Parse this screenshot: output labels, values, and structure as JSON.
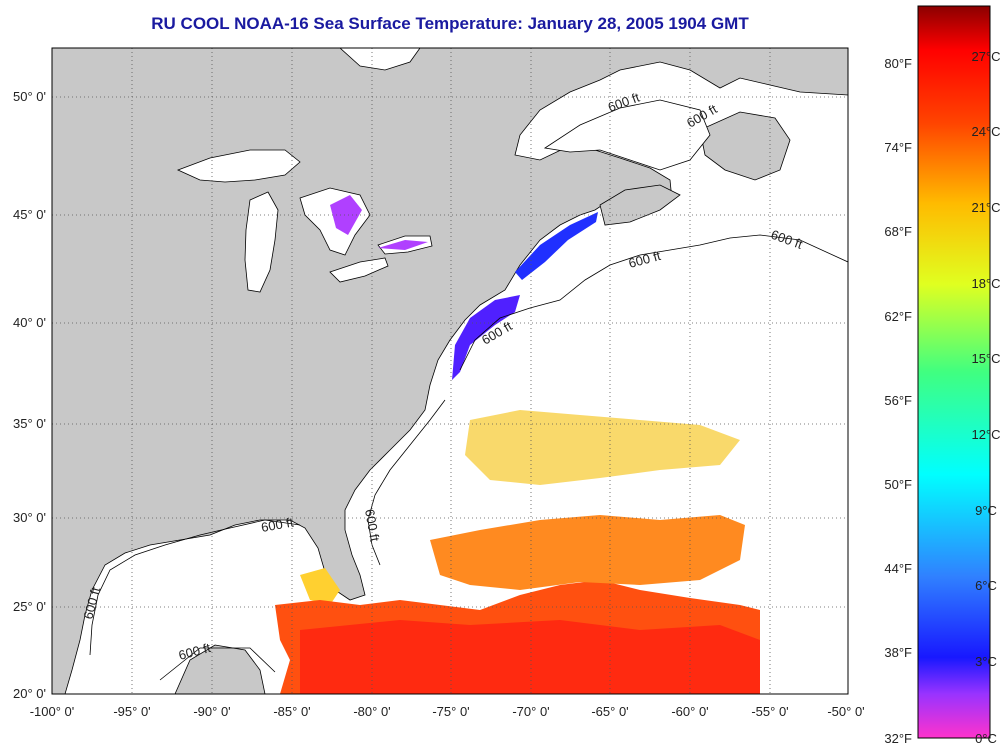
{
  "title": "RU COOL  NOAA-16  Sea Surface Temperature:  January 28, 2005 1904 GMT",
  "colors": {
    "land": "#c8c8c8",
    "water": "#ffffff",
    "coast": "#000000",
    "title": "#1a1aa0"
  },
  "axes": {
    "lon_labels": [
      "-100° 0'",
      "-95° 0'",
      "-90° 0'",
      "-85° 0'",
      "-80° 0'",
      "-75° 0'",
      "-70° 0'",
      "-65° 0'",
      "-60° 0'",
      "-55° 0'",
      "-50° 0'"
    ],
    "lat_labels": [
      "20° 0'",
      "25° 0'",
      "30° 0'",
      "35° 0'",
      "40° 0'",
      "45° 0'",
      "50° 0'"
    ]
  },
  "contour_labels": [
    "600 ft",
    "600 ft",
    "600 ft",
    "600 ft",
    "600 ft",
    "600 ft",
    "600 ft",
    "600 ft",
    "600 ft"
  ],
  "colorbar": {
    "fahrenheit": [
      "80°F",
      "74°F",
      "68°F",
      "62°F",
      "56°F",
      "50°F",
      "44°F",
      "38°F",
      "32°F"
    ],
    "celsius": [
      "27°C",
      "24°C",
      "21°C",
      "18°C",
      "15°C",
      "12°C",
      "9°C",
      "6°C",
      "3°C",
      "0°C"
    ]
  }
}
